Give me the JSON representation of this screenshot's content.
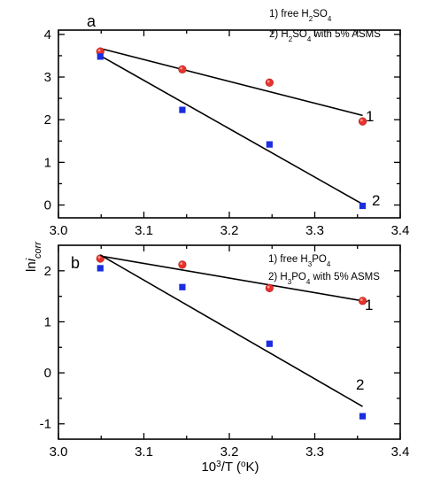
{
  "figure": {
    "ylabel": {
      "main": "ln",
      "italic": "i",
      "sub": "corr"
    },
    "xlabel": {
      "pre": "10",
      "sup": "3",
      "mid": "/T (",
      "sup2": "o",
      "post": "K)"
    }
  },
  "chart_data": [
    {
      "type": "scatter",
      "panel_label": "a",
      "x_range": [
        3.0,
        3.4
      ],
      "y_range": [
        -0.3,
        4.1
      ],
      "x_ticks": [
        3.0,
        3.1,
        3.2,
        3.3,
        3.4
      ],
      "x_tick_labels": [
        "3.0",
        "3.1",
        "3.2",
        "3.3",
        "3.4"
      ],
      "y_ticks": [
        0,
        1,
        2,
        3,
        4
      ],
      "y_tick_labels": [
        "0",
        "1",
        "2",
        "3",
        "4"
      ],
      "legend": [
        {
          "pre": "1) free H",
          "sub1": "2",
          "mid": "SO",
          "sub2": "4",
          "post": ""
        },
        {
          "pre": "2) H",
          "sub1": "2",
          "mid": "SO",
          "sub2": "4",
          "post": " with 5% ASMS"
        }
      ],
      "series": [
        {
          "label": "1",
          "marker": "circle",
          "color": "#e8322b",
          "x": [
            3.049,
            3.145,
            3.247,
            3.356
          ],
          "y": [
            3.6,
            3.18,
            2.87,
            1.96
          ],
          "fit": {
            "x": [
              3.049,
              3.356
            ],
            "y": [
              3.67,
              2.1
            ]
          }
        },
        {
          "label": "2",
          "marker": "square",
          "color": "#1a2de0",
          "x": [
            3.049,
            3.145,
            3.247,
            3.356
          ],
          "y": [
            3.48,
            2.23,
            1.42,
            -0.02
          ],
          "fit": {
            "x": [
              3.049,
              3.356
            ],
            "y": [
              3.5,
              0.02
            ]
          }
        }
      ]
    },
    {
      "type": "scatter",
      "panel_label": "b",
      "x_range": [
        3.0,
        3.4
      ],
      "y_range": [
        -1.3,
        2.5
      ],
      "x_ticks": [
        3.0,
        3.1,
        3.2,
        3.3,
        3.4
      ],
      "x_tick_labels": [
        "3.0",
        "3.1",
        "3.2",
        "3.3",
        "3.4"
      ],
      "y_ticks": [
        -1,
        0,
        1,
        2
      ],
      "y_tick_labels": [
        "-1",
        "0",
        "1",
        "2"
      ],
      "legend": [
        {
          "pre": "1) free H",
          "sub1": "3",
          "mid": "PO",
          "sub2": "4",
          "post": ""
        },
        {
          "pre": "2) H",
          "sub1": "3",
          "mid": "PO",
          "sub2": "4",
          "post": " with 5% ASMS"
        }
      ],
      "series": [
        {
          "label": "1",
          "marker": "circle",
          "color": "#e8322b",
          "x": [
            3.049,
            3.145,
            3.247,
            3.356
          ],
          "y": [
            2.24,
            2.12,
            1.66,
            1.41
          ],
          "fit": {
            "x": [
              3.049,
              3.356
            ],
            "y": [
              2.29,
              1.41
            ]
          }
        },
        {
          "label": "2",
          "marker": "square",
          "color": "#1a2de0",
          "x": [
            3.049,
            3.145,
            3.247,
            3.356
          ],
          "y": [
            2.05,
            1.68,
            0.57,
            -0.85
          ],
          "fit": {
            "x": [
              3.049,
              3.356
            ],
            "y": [
              2.31,
              -0.66
            ]
          }
        }
      ]
    }
  ]
}
